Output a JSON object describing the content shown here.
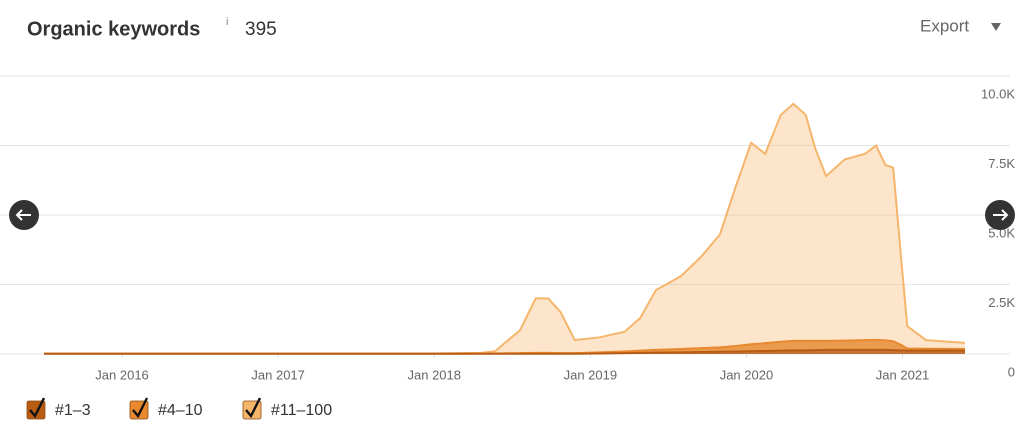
{
  "header": {
    "title": "Organic keywords",
    "info": "i",
    "count": 395,
    "export": "Export"
  },
  "chart_data": {
    "type": "stacked-area",
    "x": [
      2015.5,
      2016.0,
      2016.5,
      2017.0,
      2017.5,
      2018.0,
      2018.3,
      2018.39,
      2018.55,
      2018.65,
      2018.73,
      2018.81,
      2018.9,
      2019.06,
      2019.22,
      2019.32,
      2019.42,
      2019.58,
      2019.71,
      2019.83,
      2019.93,
      2020.03,
      2020.12,
      2020.22,
      2020.3,
      2020.38,
      2020.44,
      2020.51,
      2020.63,
      2020.76,
      2020.83,
      2020.89,
      2020.94,
      2020.99,
      2021.03,
      2021.15,
      2021.4
    ],
    "series": [
      {
        "name": "#1–3",
        "color": "#b85c14",
        "values": [
          10,
          10,
          10,
          10,
          10,
          10,
          10,
          10,
          10,
          10,
          10,
          10,
          10,
          20,
          30,
          40,
          50,
          60,
          70,
          80,
          90,
          100,
          110,
          120,
          130,
          130,
          140,
          150,
          150,
          150,
          150,
          150,
          140,
          130,
          120,
          120,
          120
        ]
      },
      {
        "name": "#4–10",
        "color": "#e8892f",
        "values": [
          5,
          5,
          5,
          5,
          5,
          5,
          5,
          10,
          20,
          30,
          30,
          20,
          20,
          40,
          60,
          80,
          100,
          120,
          140,
          160,
          200,
          250,
          280,
          320,
          340,
          340,
          330,
          320,
          330,
          350,
          360,
          340,
          320,
          200,
          80,
          70,
          60
        ]
      },
      {
        "name": "#11–100",
        "color": "#f5b56b",
        "values": [
          5,
          5,
          5,
          5,
          5,
          5,
          25,
          80,
          830,
          1960,
          1960,
          1470,
          470,
          540,
          710,
          1180,
          2150,
          2620,
          3290,
          4060,
          5710,
          7250,
          6810,
          8160,
          8530,
          8130,
          6930,
          5930,
          6520,
          6700,
          6990,
          6310,
          6240,
          3170,
          800,
          310,
          220
        ]
      }
    ],
    "xlim": [
      2015.5,
      2021.4
    ],
    "xticks": [
      {
        "value": 2016,
        "label": "Jan 2016"
      },
      {
        "value": 2017,
        "label": "Jan 2017"
      },
      {
        "value": 2018,
        "label": "Jan 2018"
      },
      {
        "value": 2019,
        "label": "Jan 2019"
      },
      {
        "value": 2020,
        "label": "Jan 2020"
      },
      {
        "value": 2021,
        "label": "Jan 2021"
      }
    ],
    "ylim": [
      0,
      10000
    ],
    "yticks": [
      0,
      {
        "value": 2500,
        "label": "2.5K"
      },
      {
        "value": 5000,
        "label": "5.0K"
      },
      {
        "value": 7500,
        "label": "7.5K"
      },
      {
        "value": 10000,
        "label": "10.0K"
      }
    ],
    "grid": true
  }
}
